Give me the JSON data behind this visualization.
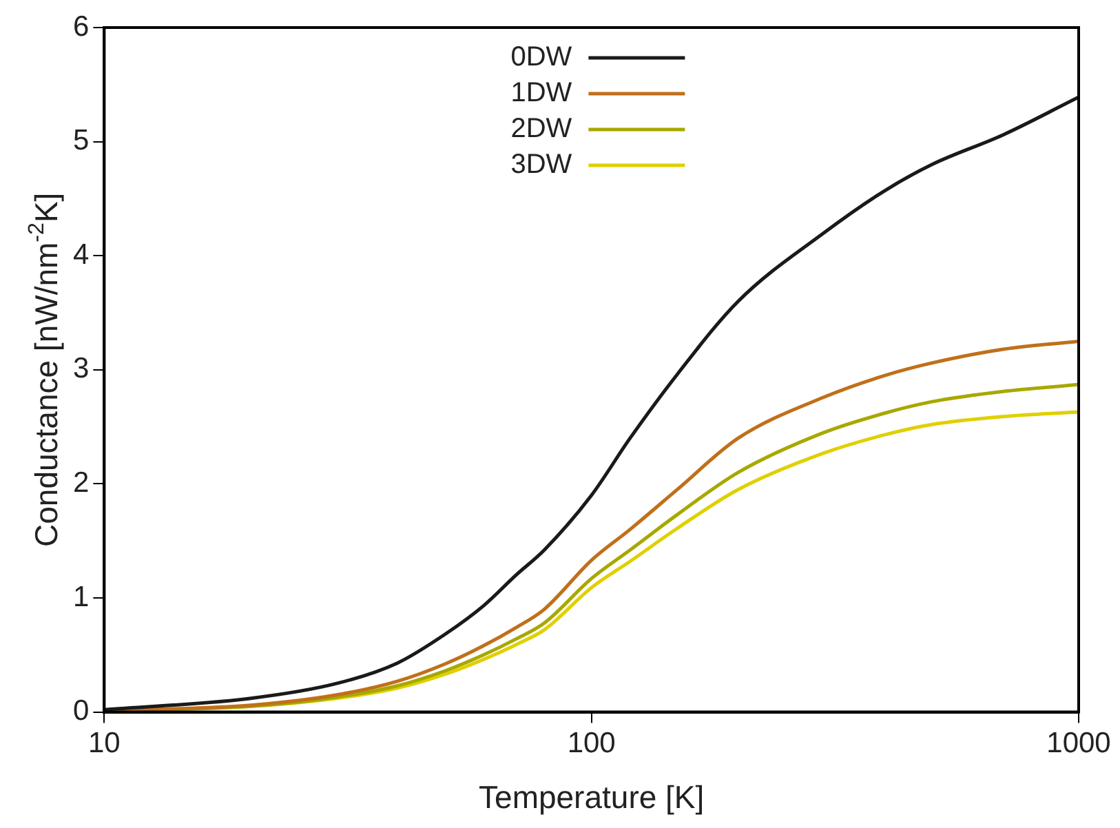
{
  "chart_data": {
    "type": "line",
    "xlabel": "Temperature [K]",
    "ylabel": "Conductance [nW/nm$^{-2}$K]",
    "x": [
      10,
      20,
      30,
      40,
      50,
      60,
      70,
      80,
      100,
      120,
      150,
      200,
      300,
      400,
      500,
      700,
      1000
    ],
    "series": [
      {
        "name": "0DW",
        "color": "#1a1a1a",
        "values": [
          0.02,
          0.12,
          0.25,
          0.43,
          0.68,
          0.93,
          1.2,
          1.42,
          1.9,
          2.4,
          2.96,
          3.6,
          4.2,
          4.57,
          4.8,
          5.06,
          5.39
        ]
      },
      {
        "name": "1DW",
        "color": "#c0701a",
        "values": [
          0.01,
          0.06,
          0.15,
          0.27,
          0.42,
          0.58,
          0.74,
          0.9,
          1.33,
          1.6,
          1.95,
          2.4,
          2.76,
          2.95,
          3.06,
          3.18,
          3.25
        ]
      },
      {
        "name": "2DW",
        "color": "#a8a800",
        "values": [
          0.01,
          0.05,
          0.13,
          0.23,
          0.36,
          0.5,
          0.64,
          0.78,
          1.17,
          1.42,
          1.73,
          2.1,
          2.45,
          2.62,
          2.72,
          2.81,
          2.87
        ]
      },
      {
        "name": "3DW",
        "color": "#e0d000",
        "values": [
          0.01,
          0.05,
          0.12,
          0.21,
          0.33,
          0.46,
          0.59,
          0.72,
          1.09,
          1.32,
          1.61,
          1.95,
          2.27,
          2.43,
          2.52,
          2.59,
          2.63
        ]
      }
    ],
    "log": "x",
    "xlim": [
      10,
      1000
    ],
    "xticks": [
      10,
      100,
      1000
    ],
    "ylim": [
      0,
      6
    ],
    "yticks": [
      0,
      1,
      2,
      3,
      4,
      5,
      6
    ],
    "legend": "top",
    "marker": "none",
    "line_style": "solid"
  }
}
